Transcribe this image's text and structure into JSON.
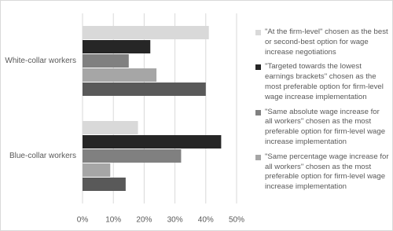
{
  "chart_data": {
    "type": "hbar",
    "categories": [
      "White-collar workers",
      "Blue-collar workers"
    ],
    "series": [
      {
        "name": "\"At the firm-level\" chosen as the best or second-best option for wage increase negotiations",
        "color": "#d9d9d9",
        "values": [
          41,
          18
        ]
      },
      {
        "name": "\"Targeted towards the lowest earnings brackets\" chosen as the most preferable option for firm-level wage increase implementation",
        "color": "#262626",
        "values": [
          22,
          45
        ]
      },
      {
        "name": "\"Same absolute wage increase for all workers\" chosen as the most preferable option for firm-level wage increase implementation",
        "color": "#808080",
        "values": [
          15,
          32
        ]
      },
      {
        "name": "\"Same percentage wage increase for all workers\" chosen as the most preferable option for firm-level wage increase implementation",
        "color": "#a6a6a6",
        "values": [
          24,
          9
        ]
      },
      {
        "name": null,
        "color": "#595959",
        "values": [
          40,
          14
        ]
      }
    ],
    "xlim": [
      0,
      50
    ],
    "xticks": [
      {
        "value": 0,
        "label": "0%"
      },
      {
        "value": 10,
        "label": "10%"
      },
      {
        "value": 20,
        "label": "20%"
      },
      {
        "value": 30,
        "label": "30%"
      },
      {
        "value": 40,
        "label": "40%"
      },
      {
        "value": 50,
        "label": "50%"
      }
    ],
    "grid": true
  }
}
